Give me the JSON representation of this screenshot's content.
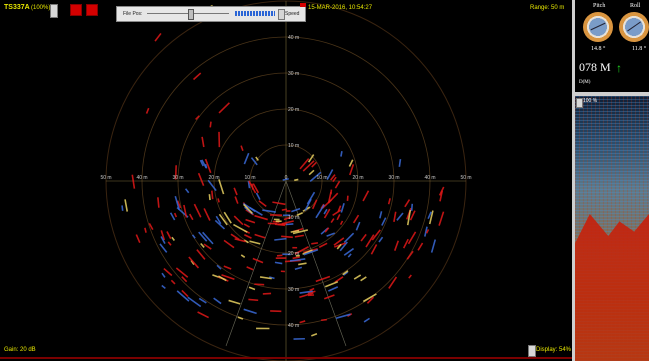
{
  "sonar": {
    "device_label": "TS337A",
    "device_percent": "(100%)",
    "datetime": "15-MAR-2016, 10:54:27",
    "range_label": "Range: 50 m",
    "gain_label": "Gain: 20 dB",
    "display_label": "Display: 54%",
    "range_rings": [
      "10 m",
      "20 m",
      "30 m",
      "40 m"
    ],
    "horiz_ticks": [
      "50 m",
      "40 m",
      "30 m",
      "20 m",
      "10 m",
      "0",
      "10 m",
      "20 m",
      "30 m",
      "40 m",
      "50 m"
    ],
    "vert_ticks_up": [
      "10 m",
      "20 m",
      "30 m",
      "40 m"
    ],
    "vert_ticks_down": [
      "10 m",
      "20 m",
      "30 m",
      "40 m"
    ],
    "colors": {
      "grid": "#7a6a3a",
      "echo_red": "#e01818",
      "echo_blue": "#3a6ad8",
      "label": "#e8e800"
    }
  },
  "playback": {
    "file_pos_label": "File Pos:",
    "speed_label": "Speed"
  },
  "attitude": {
    "pitch_label": "Pitch",
    "roll_label": "Roll",
    "pitch_value": "14.8 °",
    "roll_value": "11.8 °",
    "depth_value": "078 M",
    "depth_unit_label": "D(M)"
  },
  "echogram": {
    "percent": "100 %"
  }
}
